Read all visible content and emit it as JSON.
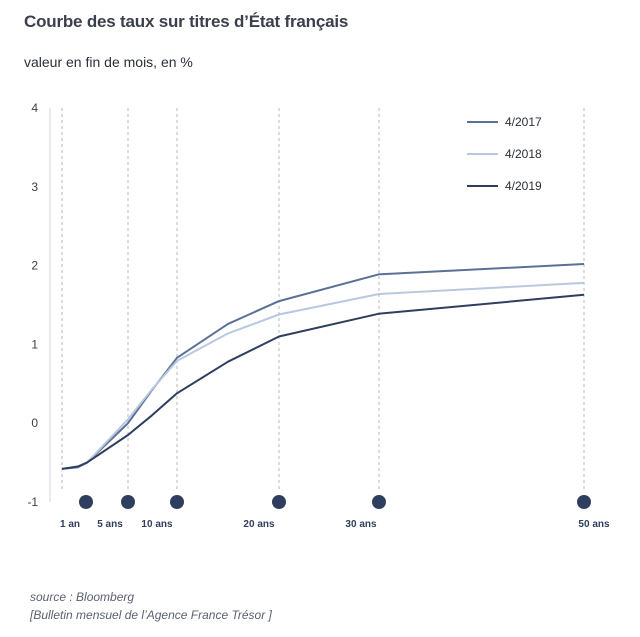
{
  "title": "Courbe des taux sur titres d’État français",
  "subtitle": "valeur en fin de mois, en %",
  "source_line1": "source : Bloomberg",
  "source_line2": "[Bulletin mensuel de l’Agence France Trésor ]",
  "chart_data": {
    "type": "line",
    "x": [
      1,
      2,
      3,
      5,
      7,
      10,
      15,
      20,
      30,
      50
    ],
    "xticks": [
      {
        "value": 1,
        "label": "1 an"
      },
      {
        "value": 5,
        "label": "5 ans"
      },
      {
        "value": 10,
        "label": "10 ans"
      },
      {
        "value": 20,
        "label": "20 ans"
      },
      {
        "value": 30,
        "label": "30 ans"
      },
      {
        "value": 50,
        "label": "50 ans"
      }
    ],
    "ylim": [
      -1,
      4
    ],
    "yticks": [
      "-1",
      "0",
      "1",
      "2",
      "3",
      "4"
    ],
    "grid": "vertical dashed at maturities",
    "legend_position": "top-right",
    "series": [
      {
        "name": "4/2017",
        "color": "#5b7096",
        "values": [
          -0.58,
          -0.56,
          -0.5,
          0.0,
          0.42,
          0.83,
          1.26,
          1.55,
          1.89,
          2.02
        ]
      },
      {
        "name": "4/2018",
        "color": "#b8c8de",
        "values": [
          -0.58,
          -0.55,
          -0.5,
          0.05,
          0.43,
          0.79,
          1.14,
          1.38,
          1.64,
          1.78
        ]
      },
      {
        "name": "4/2019",
        "color": "#2f3e5f",
        "values": [
          -0.58,
          -0.55,
          -0.5,
          -0.15,
          0.1,
          0.38,
          0.78,
          1.1,
          1.39,
          1.63
        ]
      }
    ]
  }
}
